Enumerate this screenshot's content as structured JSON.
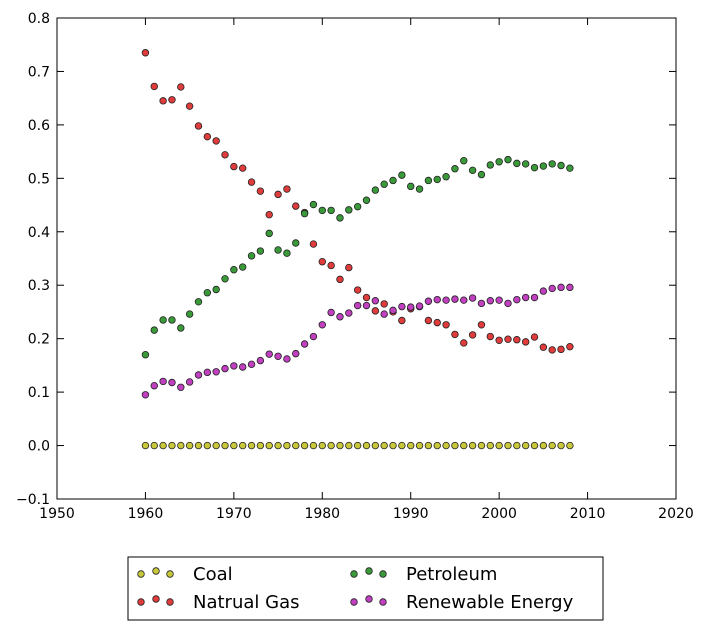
{
  "chart_data": {
    "type": "scatter",
    "title": "",
    "xlabel": "",
    "ylabel": "",
    "xlim": [
      1950,
      2020
    ],
    "ylim": [
      -0.1,
      0.8
    ],
    "xticks": [
      1950,
      1960,
      1970,
      1980,
      1990,
      2000,
      2010,
      2020
    ],
    "xtick_labels": [
      "1950",
      "1960",
      "1970",
      "1980",
      "1990",
      "2000",
      "2010",
      "2020"
    ],
    "yticks": [
      -0.1,
      0.0,
      0.1,
      0.2,
      0.3,
      0.4,
      0.5,
      0.6,
      0.7,
      0.8
    ],
    "ytick_labels": [
      "−0.1",
      "0.0",
      "0.1",
      "0.2",
      "0.3",
      "0.4",
      "0.5",
      "0.6",
      "0.7",
      "0.8"
    ],
    "grid": false,
    "legend_position": "below plot, two columns",
    "x": [
      1960,
      1961,
      1962,
      1963,
      1964,
      1965,
      1966,
      1967,
      1968,
      1969,
      1970,
      1971,
      1972,
      1973,
      1974,
      1975,
      1976,
      1977,
      1978,
      1979,
      1980,
      1981,
      1982,
      1983,
      1984,
      1985,
      1986,
      1987,
      1988,
      1989,
      1990,
      1991,
      1992,
      1993,
      1994,
      1995,
      1996,
      1997,
      1998,
      1999,
      2000,
      2001,
      2002,
      2003,
      2004,
      2005,
      2006,
      2007,
      2008
    ],
    "series": [
      {
        "name": "Coal",
        "color": "#c8c83a",
        "values": [
          0,
          0,
          0,
          0,
          0,
          0,
          0,
          0,
          0,
          0,
          0,
          0,
          0,
          0,
          0,
          0,
          0,
          0,
          0,
          0,
          0,
          0,
          0,
          0,
          0,
          0,
          0,
          0,
          0,
          0,
          0,
          0,
          0,
          0,
          0,
          0,
          0,
          0,
          0,
          0,
          0,
          0,
          0,
          0,
          0,
          0,
          0,
          0,
          0
        ]
      },
      {
        "name": "Natrual Gas",
        "color": "#e03c3c",
        "values": [
          0.735,
          0.672,
          0.645,
          0.647,
          0.671,
          0.635,
          0.598,
          0.578,
          0.57,
          0.544,
          0.522,
          0.519,
          0.493,
          0.476,
          0.432,
          0.47,
          0.48,
          0.448,
          0.436,
          0.377,
          0.344,
          0.337,
          0.311,
          0.333,
          0.291,
          0.277,
          0.252,
          0.265,
          0.25,
          0.234,
          0.256,
          0.26,
          0.234,
          0.23,
          0.226,
          0.208,
          0.192,
          0.207,
          0.226,
          0.204,
          0.197,
          0.199,
          0.198,
          0.194,
          0.203,
          0.184,
          0.179,
          0.18,
          0.185
        ]
      },
      {
        "name": "Petroleum",
        "color": "#3a9a3a",
        "values": [
          0.17,
          0.216,
          0.235,
          0.235,
          0.22,
          0.246,
          0.269,
          0.286,
          0.292,
          0.312,
          0.329,
          0.334,
          0.355,
          0.364,
          0.397,
          0.366,
          0.36,
          0.379,
          0.434,
          0.451,
          0.44,
          0.44,
          0.426,
          0.441,
          0.447,
          0.459,
          0.478,
          0.489,
          0.496,
          0.506,
          0.485,
          0.48,
          0.496,
          0.498,
          0.503,
          0.518,
          0.533,
          0.515,
          0.507,
          0.525,
          0.531,
          0.535,
          0.528,
          0.527,
          0.52,
          0.523,
          0.527,
          0.524,
          0.519
        ]
      },
      {
        "name": "Renewable Energy",
        "color": "#c040c0",
        "values": [
          0.095,
          0.112,
          0.12,
          0.118,
          0.109,
          0.119,
          0.132,
          0.137,
          0.138,
          0.144,
          0.149,
          0.147,
          0.152,
          0.159,
          0.171,
          0.167,
          0.162,
          0.172,
          0.19,
          0.204,
          0.226,
          0.249,
          0.241,
          0.248,
          0.262,
          0.262,
          0.271,
          0.246,
          0.253,
          0.26,
          0.259,
          0.261,
          0.27,
          0.273,
          0.272,
          0.274,
          0.272,
          0.276,
          0.266,
          0.271,
          0.272,
          0.266,
          0.273,
          0.277,
          0.277,
          0.289,
          0.294,
          0.296,
          0.296
        ]
      }
    ]
  }
}
